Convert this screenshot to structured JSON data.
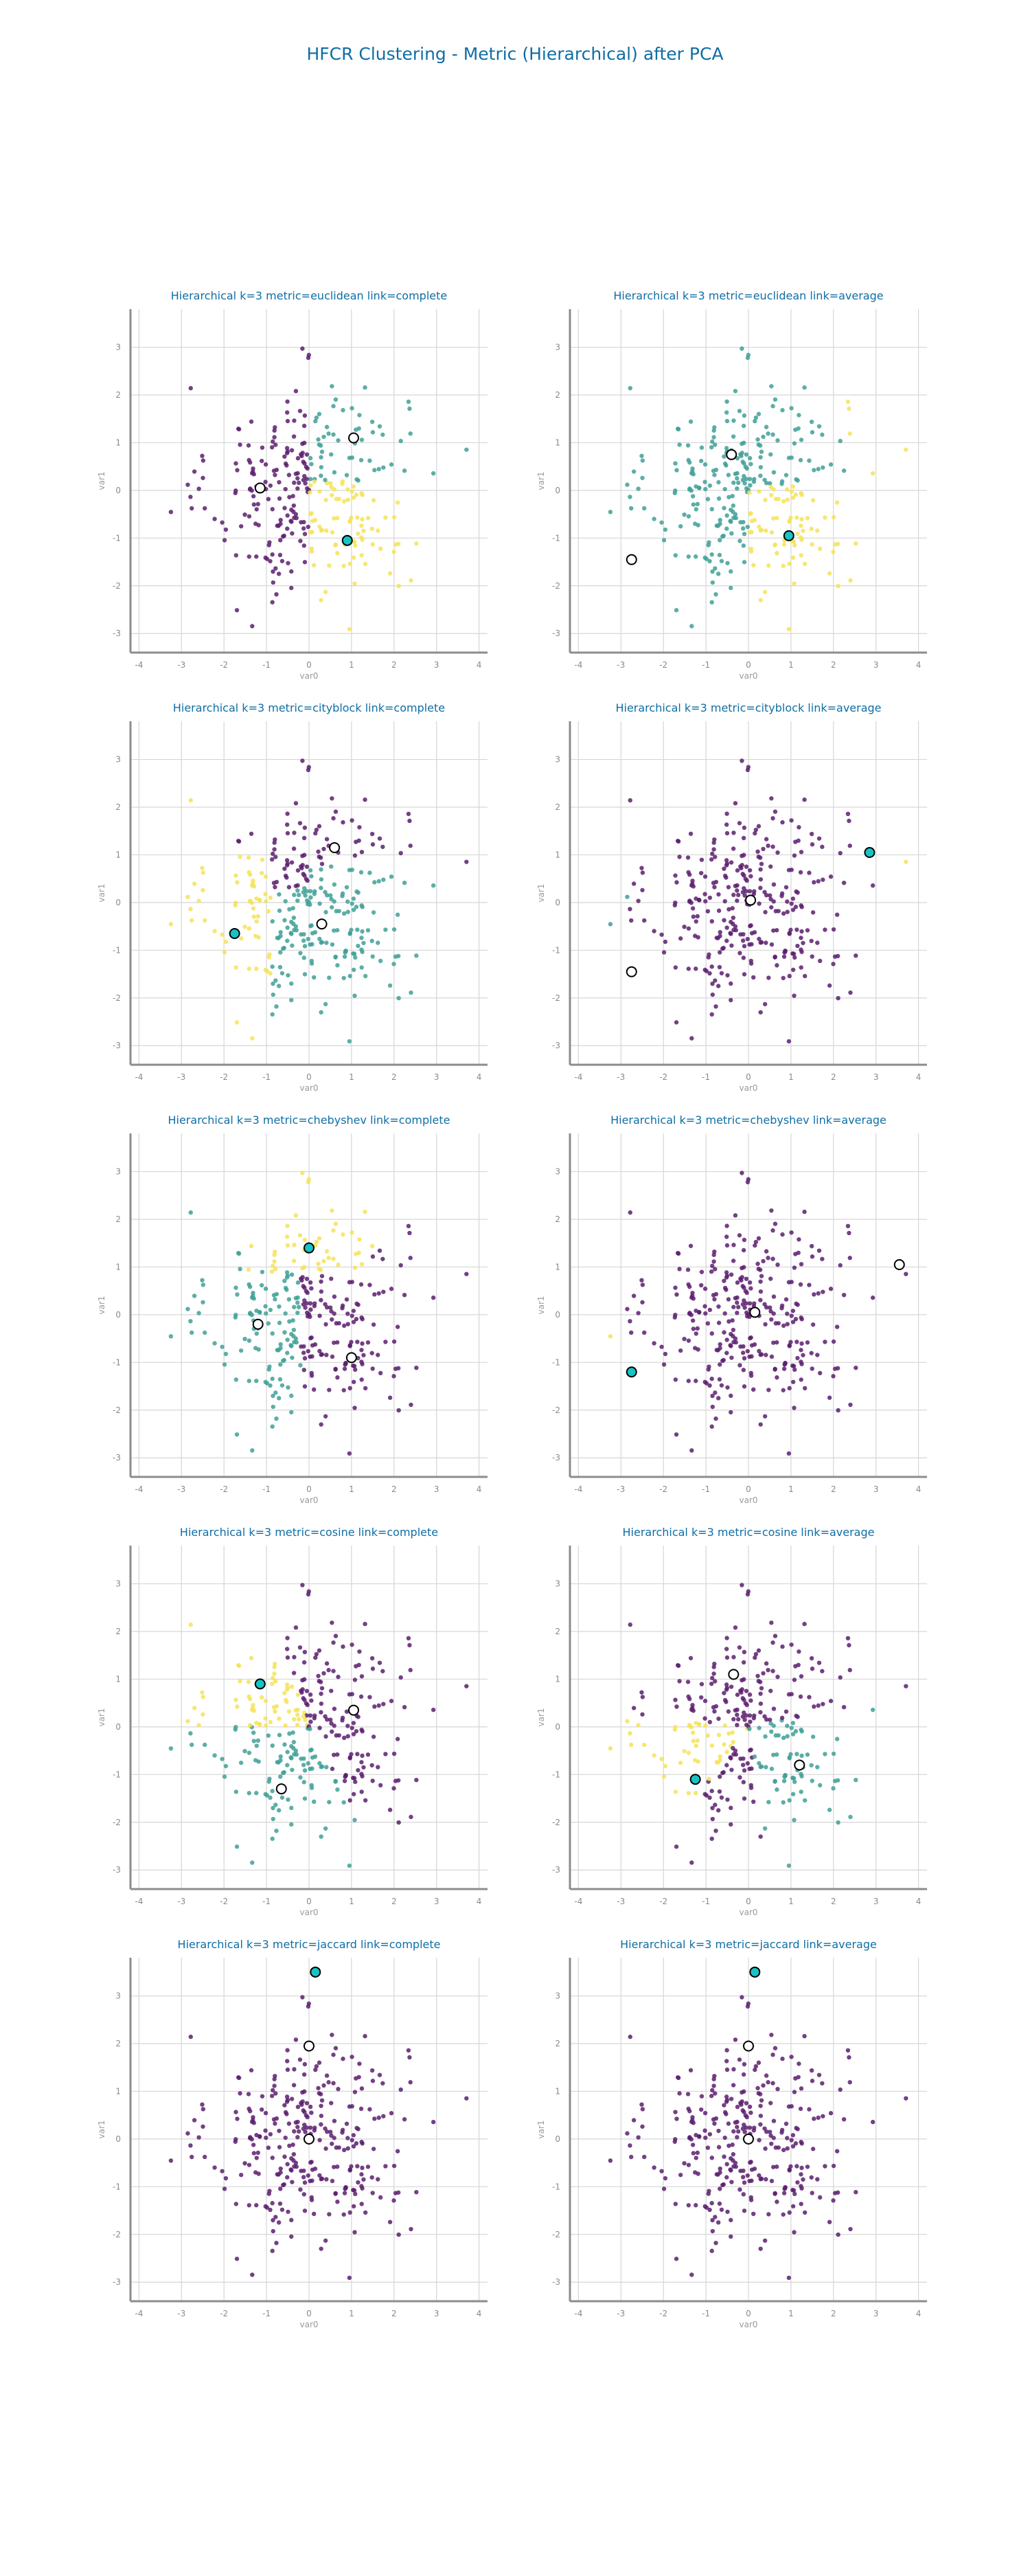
{
  "figure": {
    "title": "HFCR Clustering - Metric (Hierarchical) after PCA"
  },
  "colors": {
    "title": "#0e6ea5",
    "axis_label": "#9a9a9a",
    "tick_label": "#8a8a8a",
    "grid": "#d6d6d6",
    "spine": "#8c8c8c",
    "cluster_0": "#5c1f6e",
    "cluster_1": "#3fa096",
    "cluster_2": "#f4e35a",
    "highlight_center": "#18c3c3",
    "center_edge": "#000000",
    "center_fill": "#ffffff"
  },
  "chart_data": [
    {
      "type": "scatter",
      "title": "Hierarchical k=3 metric=euclidean link=complete",
      "xlabel": "var0",
      "ylabel": "var1",
      "xlim": [
        -4.2,
        4.2
      ],
      "ylim": [
        -3.4,
        3.8
      ],
      "xticks": [
        -4,
        -3,
        -2,
        -1,
        0,
        1,
        2,
        3,
        4
      ],
      "yticks": [
        -3,
        -2,
        -1,
        0,
        1,
        2,
        3
      ],
      "grid": true,
      "assignment": "euclidean-complete",
      "centers": [
        {
          "x": 1.05,
          "y": 1.1,
          "highlight": false
        },
        {
          "x": -1.15,
          "y": 0.05,
          "highlight": false
        },
        {
          "x": 0.9,
          "y": -1.05,
          "highlight": true
        }
      ]
    },
    {
      "type": "scatter",
      "title": "Hierarchical k=3 metric=euclidean link=average",
      "xlabel": "var0",
      "ylabel": "var1",
      "xlim": [
        -4.2,
        4.2
      ],
      "ylim": [
        -3.4,
        3.8
      ],
      "xticks": [
        -4,
        -3,
        -2,
        -1,
        0,
        1,
        2,
        3,
        4
      ],
      "yticks": [
        -3,
        -2,
        -1,
        0,
        1,
        2,
        3
      ],
      "grid": true,
      "assignment": "euclidean-average",
      "centers": [
        {
          "x": -0.4,
          "y": 0.75,
          "highlight": false
        },
        {
          "x": -2.75,
          "y": -1.45,
          "highlight": false
        },
        {
          "x": 0.95,
          "y": -0.95,
          "highlight": true
        }
      ]
    },
    {
      "type": "scatter",
      "title": "Hierarchical k=3 metric=cityblock link=complete",
      "xlabel": "var0",
      "ylabel": "var1",
      "xlim": [
        -4.2,
        4.2
      ],
      "ylim": [
        -3.4,
        3.8
      ],
      "xticks": [
        -4,
        -3,
        -2,
        -1,
        0,
        1,
        2,
        3,
        4
      ],
      "yticks": [
        -3,
        -2,
        -1,
        0,
        1,
        2,
        3
      ],
      "grid": true,
      "assignment": "cityblock-complete",
      "centers": [
        {
          "x": 0.6,
          "y": 1.15,
          "highlight": false
        },
        {
          "x": 0.3,
          "y": -0.45,
          "highlight": false
        },
        {
          "x": -1.75,
          "y": -0.65,
          "highlight": true
        }
      ]
    },
    {
      "type": "scatter",
      "title": "Hierarchical k=3 metric=cityblock link=average",
      "xlabel": "var0",
      "ylabel": "var1",
      "xlim": [
        -4.2,
        4.2
      ],
      "ylim": [
        -3.4,
        3.8
      ],
      "xticks": [
        -4,
        -3,
        -2,
        -1,
        0,
        1,
        2,
        3,
        4
      ],
      "yticks": [
        -3,
        -2,
        -1,
        0,
        1,
        2,
        3
      ],
      "grid": true,
      "assignment": "cityblock-average",
      "centers": [
        {
          "x": 0.05,
          "y": 0.05,
          "highlight": false
        },
        {
          "x": -2.75,
          "y": -1.45,
          "highlight": false
        },
        {
          "x": 2.85,
          "y": 1.05,
          "highlight": true
        }
      ]
    },
    {
      "type": "scatter",
      "title": "Hierarchical k=3 metric=chebyshev link=complete",
      "xlabel": "var0",
      "ylabel": "var1",
      "xlim": [
        -4.2,
        4.2
      ],
      "ylim": [
        -3.4,
        3.8
      ],
      "xticks": [
        -4,
        -3,
        -2,
        -1,
        0,
        1,
        2,
        3,
        4
      ],
      "yticks": [
        -3,
        -2,
        -1,
        0,
        1,
        2,
        3
      ],
      "grid": true,
      "assignment": "chebyshev-complete",
      "centers": [
        {
          "x": -1.2,
          "y": -0.2,
          "highlight": false
        },
        {
          "x": 1.0,
          "y": -0.9,
          "highlight": false
        },
        {
          "x": 0.0,
          "y": 1.4,
          "highlight": true
        }
      ]
    },
    {
      "type": "scatter",
      "title": "Hierarchical k=3 metric=chebyshev link=average",
      "xlabel": "var0",
      "ylabel": "var1",
      "xlim": [
        -4.2,
        4.2
      ],
      "ylim": [
        -3.4,
        3.8
      ],
      "xticks": [
        -4,
        -3,
        -2,
        -1,
        0,
        1,
        2,
        3,
        4
      ],
      "yticks": [
        -3,
        -2,
        -1,
        0,
        1,
        2,
        3
      ],
      "grid": true,
      "assignment": "chebyshev-average",
      "centers": [
        {
          "x": 0.15,
          "y": 0.05,
          "highlight": false
        },
        {
          "x": 3.55,
          "y": 1.05,
          "highlight": false
        },
        {
          "x": -2.75,
          "y": -1.2,
          "highlight": true
        }
      ]
    },
    {
      "type": "scatter",
      "title": "Hierarchical k=3 metric=cosine link=complete",
      "xlabel": "var0",
      "ylabel": "var1",
      "xlim": [
        -4.2,
        4.2
      ],
      "ylim": [
        -3.4,
        3.8
      ],
      "xticks": [
        -4,
        -3,
        -2,
        -1,
        0,
        1,
        2,
        3,
        4
      ],
      "yticks": [
        -3,
        -2,
        -1,
        0,
        1,
        2,
        3
      ],
      "grid": true,
      "assignment": "cosine-complete",
      "centers": [
        {
          "x": 1.05,
          "y": 0.35,
          "highlight": false
        },
        {
          "x": -0.65,
          "y": -1.3,
          "highlight": false
        },
        {
          "x": -1.15,
          "y": 0.9,
          "highlight": true
        }
      ]
    },
    {
      "type": "scatter",
      "title": "Hierarchical k=3 metric=cosine link=average",
      "xlabel": "var0",
      "ylabel": "var1",
      "xlim": [
        -4.2,
        4.2
      ],
      "ylim": [
        -3.4,
        3.8
      ],
      "xticks": [
        -4,
        -3,
        -2,
        -1,
        0,
        1,
        2,
        3,
        4
      ],
      "yticks": [
        -3,
        -2,
        -1,
        0,
        1,
        2,
        3
      ],
      "grid": true,
      "assignment": "cosine-average",
      "centers": [
        {
          "x": -0.35,
          "y": 1.1,
          "highlight": false
        },
        {
          "x": 1.2,
          "y": -0.8,
          "highlight": false
        },
        {
          "x": -1.25,
          "y": -1.1,
          "highlight": true
        }
      ]
    },
    {
      "type": "scatter",
      "title": "Hierarchical k=3 metric=jaccard link=complete",
      "xlabel": "var0",
      "ylabel": "var1",
      "xlim": [
        -4.2,
        4.2
      ],
      "ylim": [
        -3.4,
        3.8
      ],
      "xticks": [
        -4,
        -3,
        -2,
        -1,
        0,
        1,
        2,
        3,
        4
      ],
      "yticks": [
        -3,
        -2,
        -1,
        0,
        1,
        2,
        3
      ],
      "grid": true,
      "assignment": "jaccard",
      "centers": [
        {
          "x": 0.0,
          "y": 1.95,
          "highlight": false
        },
        {
          "x": 0.0,
          "y": 0.0,
          "highlight": false
        },
        {
          "x": 0.15,
          "y": 3.5,
          "highlight": true
        }
      ]
    },
    {
      "type": "scatter",
      "title": "Hierarchical k=3 metric=jaccard link=average",
      "xlabel": "var0",
      "ylabel": "var1",
      "xlim": [
        -4.2,
        4.2
      ],
      "ylim": [
        -3.4,
        3.8
      ],
      "xticks": [
        -4,
        -3,
        -2,
        -1,
        0,
        1,
        2,
        3,
        4
      ],
      "yticks": [
        -3,
        -2,
        -1,
        0,
        1,
        2,
        3
      ],
      "grid": true,
      "assignment": "jaccard",
      "centers": [
        {
          "x": 0.0,
          "y": 1.95,
          "highlight": false
        },
        {
          "x": 0.0,
          "y": 0.0,
          "highlight": false
        },
        {
          "x": 0.15,
          "y": 3.5,
          "highlight": true
        }
      ]
    }
  ]
}
